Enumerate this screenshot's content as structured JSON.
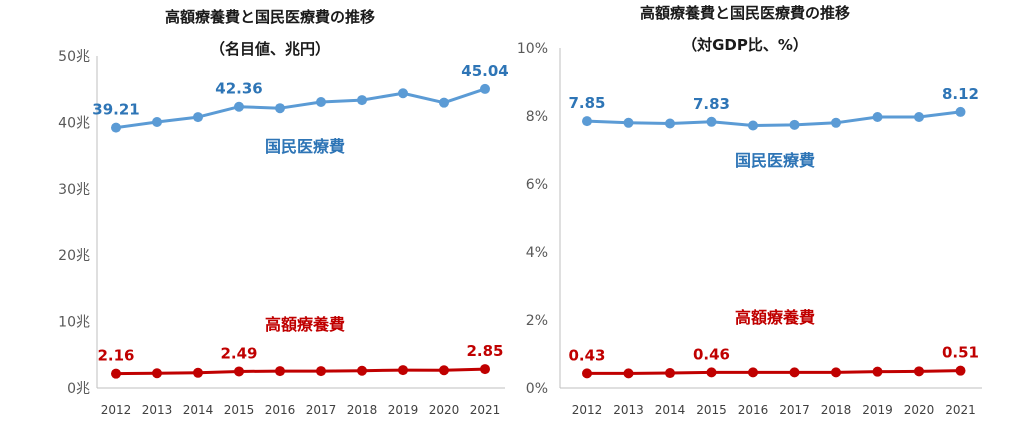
{
  "chart_data": [
    {
      "type": "line",
      "title": "高額療養費と国民医療費の推移",
      "subtitle": "（名目値、兆円）",
      "categories": [
        "2012",
        "2013",
        "2014",
        "2015",
        "2016",
        "2017",
        "2018",
        "2019",
        "2020",
        "2021"
      ],
      "y_ticks": [
        "0兆",
        "10兆",
        "20兆",
        "30兆",
        "40兆",
        "50兆"
      ],
      "ylim": [
        0,
        50
      ],
      "grid": false,
      "series": [
        {
          "name": "国民医療費",
          "color": "#5b9bd5",
          "label_color": "#2e75b6",
          "values": [
            39.21,
            40.06,
            40.8,
            42.36,
            42.14,
            43.07,
            43.36,
            44.39,
            42.97,
            45.04
          ],
          "labels": {
            "0": "39.21",
            "3": "42.36",
            "9": "45.04"
          }
        },
        {
          "name": "高額療養費",
          "color": "#c00000",
          "label_color": "#c00000",
          "values": [
            2.16,
            2.22,
            2.29,
            2.49,
            2.55,
            2.55,
            2.6,
            2.7,
            2.67,
            2.85
          ],
          "labels": {
            "0": "2.16",
            "3": "2.49",
            "9": "2.85"
          }
        }
      ]
    },
    {
      "type": "line",
      "title": "高額療養費と国民医療費の推移",
      "subtitle": "（対GDP比、%）",
      "categories": [
        "2012",
        "2013",
        "2014",
        "2015",
        "2016",
        "2017",
        "2018",
        "2019",
        "2020",
        "2021"
      ],
      "y_ticks": [
        "0%",
        "2%",
        "4%",
        "6%",
        "8%",
        "10%"
      ],
      "ylim": [
        0,
        10
      ],
      "grid": false,
      "series": [
        {
          "name": "国民医療費",
          "color": "#5b9bd5",
          "label_color": "#2e75b6",
          "values": [
            7.85,
            7.8,
            7.78,
            7.83,
            7.72,
            7.74,
            7.8,
            7.97,
            7.97,
            8.12
          ],
          "labels": {
            "0": "7.85",
            "3": "7.83",
            "9": "8.12"
          }
        },
        {
          "name": "高額療養費",
          "color": "#c00000",
          "label_color": "#c00000",
          "values": [
            0.43,
            0.43,
            0.44,
            0.46,
            0.46,
            0.46,
            0.46,
            0.48,
            0.49,
            0.51
          ],
          "labels": {
            "0": "0.43",
            "3": "0.46",
            "9": "0.51"
          }
        }
      ]
    }
  ]
}
